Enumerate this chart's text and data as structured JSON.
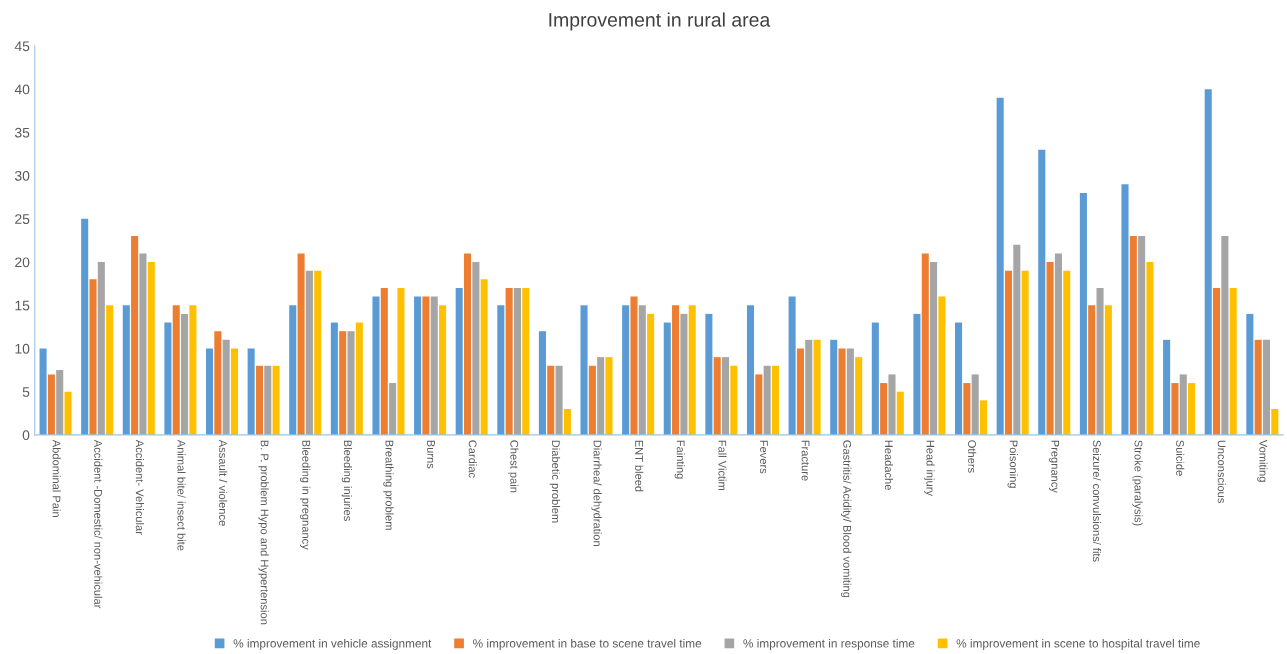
{
  "chart_data": {
    "type": "bar",
    "title": "Improvement in rural area",
    "categories": [
      "Abdominal Pain",
      "Accident -Domestic/ non-vehicular",
      "Accident- Vehicular",
      "Animal bite/ insect bite",
      "Assault / violence",
      "B. P. problem Hypo and Hypertension",
      "Bleeding in pregnancy",
      "Bleeding injuries",
      "Breathing problem",
      "Burns",
      "Cardiac",
      "Chest pain",
      "Diabetic problem",
      "Diarrhea/ dehydration",
      "ENT bleed",
      "Fainting",
      "Fall Victim",
      "Fevers",
      "Fracture",
      "Gastritis/ Acidity/ Blood vomiting",
      "Headache",
      "Head injury",
      "Others",
      "Poisoning",
      "Pregnancy",
      "Seizure/ convulsions/ fits",
      "Stroke (paralysis)",
      "Suicide",
      "Unconscious",
      "Vomiting"
    ],
    "series": [
      {
        "name": "% improvement in vehicle assignment",
        "color": "#5b9bd5",
        "values": [
          10,
          25,
          15,
          13,
          10,
          10,
          15,
          13,
          16,
          16,
          17,
          15,
          12,
          15,
          15,
          13,
          14,
          15,
          16,
          11,
          13,
          14,
          13,
          39,
          33,
          28,
          29,
          11,
          40,
          14
        ]
      },
      {
        "name": "% improvement in base to scene travel time",
        "color": "#ed7d31",
        "values": [
          7,
          18,
          23,
          15,
          12,
          8,
          21,
          12,
          17,
          16,
          21,
          17,
          8,
          8,
          16,
          15,
          9,
          7,
          10,
          10,
          6,
          21,
          6,
          19,
          20,
          15,
          23,
          6,
          17,
          11
        ]
      },
      {
        "name": "% improvement in response time",
        "color": "#a5a5a5",
        "values": [
          7.5,
          20,
          21,
          14,
          11,
          8,
          19,
          12,
          6,
          16,
          20,
          17,
          8,
          9,
          15,
          14,
          9,
          8,
          11,
          10,
          7,
          20,
          7,
          22,
          21,
          17,
          23,
          7,
          23,
          11
        ]
      },
      {
        "name": "% improvement in scene to hospital travel time",
        "color": "#ffc000",
        "values": [
          5,
          15,
          20,
          15,
          10,
          8,
          19,
          13,
          17,
          15,
          18,
          17,
          3,
          9,
          14,
          15,
          8,
          8,
          11,
          9,
          5,
          16,
          4,
          19,
          19,
          15,
          20,
          6,
          17,
          3
        ]
      }
    ],
    "ylim": [
      0,
      45
    ],
    "yticks": [
      0,
      5,
      10,
      15,
      20,
      25,
      30,
      35,
      40,
      45
    ],
    "grid": false,
    "legend": "bottom"
  }
}
